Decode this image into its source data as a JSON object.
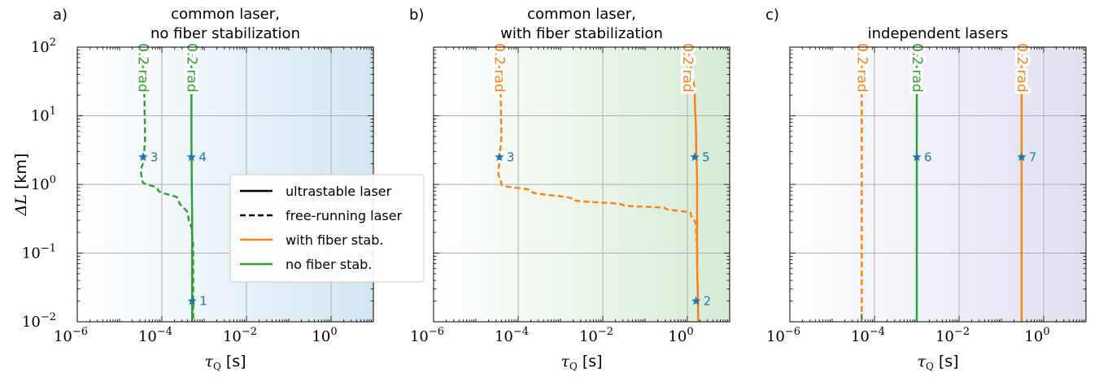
{
  "colors": {
    "orange": "#ff7f0e",
    "green": "#2ca02c",
    "star": "#1f77b4",
    "grid": "#b0b0b0",
    "shade_a": "#d2e6f1",
    "shade_b": "#d6ebd6",
    "shade_c": "#e0dff0"
  },
  "shared_axes": {
    "x_scale": "log",
    "y_scale": "log",
    "xlim": [
      1e-06,
      10
    ],
    "ylim": [
      0.01,
      100
    ],
    "xticks": [
      {
        "value": 1e-06,
        "base": "10",
        "exp": "−6"
      },
      {
        "value": 0.0001,
        "base": "10",
        "exp": "−4"
      },
      {
        "value": 0.01,
        "base": "10",
        "exp": "−2"
      },
      {
        "value": 1,
        "base": "10",
        "exp": "0"
      }
    ],
    "yticks": [
      {
        "value": 0.01,
        "base": "10",
        "exp": "−2"
      },
      {
        "value": 0.1,
        "base": "10",
        "exp": "−1"
      },
      {
        "value": 1,
        "base": "10",
        "exp": "0"
      },
      {
        "value": 10,
        "base": "10",
        "exp": "1"
      },
      {
        "value": 100,
        "base": "10",
        "exp": "2"
      }
    ],
    "xlabel": {
      "symbol": "τ",
      "sub": "Q",
      "unit": " [s]"
    },
    "ylabel": {
      "symbol": "ΔL",
      "unit": " [km]"
    },
    "grid": true
  },
  "legend": {
    "placement": "panel-a-right-center",
    "entries": [
      {
        "label": "ultrastable laser",
        "style": "solid",
        "color": "#000000"
      },
      {
        "label": "free-running laser",
        "style": "dashed",
        "color": "#000000"
      },
      {
        "label": "with fiber stab.",
        "style": "solid",
        "color": "#ff7f0e"
      },
      {
        "label": "no fiber stab.",
        "style": "solid",
        "color": "#2ca02c"
      }
    ]
  },
  "chart_data": [
    {
      "type": "line",
      "panel_label": "a)",
      "title": [
        "common laser,",
        "no fiber stabilization"
      ],
      "shade": "shade_a",
      "series": [
        {
          "color": "green",
          "style": "dashed",
          "label": "0.2 rad",
          "points": [
            [
              3.5e-05,
              100
            ],
            [
              3.6e-05,
              40
            ],
            [
              3.9e-05,
              15
            ],
            [
              4e-05,
              5
            ],
            [
              3.8e-05,
              2.5
            ],
            [
              3.2e-05,
              1.5
            ],
            [
              3.5e-05,
              1.1
            ],
            [
              8e-05,
              0.85
            ],
            [
              0.00025,
              0.6
            ],
            [
              0.00042,
              0.35
            ],
            [
              0.00052,
              0.2
            ],
            [
              0.00055,
              0.12
            ],
            [
              0.00055,
              0.01
            ]
          ]
        },
        {
          "color": "green",
          "style": "solid",
          "label": "0.2 rad",
          "points": [
            [
              0.0005,
              100
            ],
            [
              0.0005,
              20
            ],
            [
              0.0005,
              5
            ],
            [
              0.00051,
              1
            ],
            [
              0.00052,
              0.3
            ],
            [
              0.00052,
              0.01
            ]
          ]
        }
      ],
      "markers": [
        {
          "x": 3.6e-05,
          "y": 2.5,
          "label": "3"
        },
        {
          "x": 0.0005,
          "y": 2.5,
          "label": "4"
        },
        {
          "x": 0.00052,
          "y": 0.02,
          "label": "1"
        }
      ]
    },
    {
      "type": "line",
      "panel_label": "b)",
      "title": [
        "common laser,",
        "with fiber stabilization"
      ],
      "shade": "shade_b",
      "series": [
        {
          "color": "orange",
          "style": "dashed",
          "label": "0.2 rad",
          "points": [
            [
              3.5e-05,
              100
            ],
            [
              3.6e-05,
              40
            ],
            [
              3.9e-05,
              15
            ],
            [
              4e-05,
              5
            ],
            [
              3.7e-05,
              2.5
            ],
            [
              3.4e-05,
              1.5
            ],
            [
              4e-05,
              1.0
            ],
            [
              0.0002,
              0.8
            ],
            [
              0.002,
              0.6
            ],
            [
              0.03,
              0.5
            ],
            [
              0.3,
              0.45
            ],
            [
              1.2,
              0.38
            ],
            [
              1.6,
              0.25
            ],
            [
              1.7,
              0.1
            ],
            [
              1.8,
              0.01
            ]
          ]
        },
        {
          "color": "orange",
          "style": "solid",
          "label": "0.2 rad",
          "points": [
            [
              1.0,
              100
            ],
            [
              1.2,
              60
            ],
            [
              1.5,
              20
            ],
            [
              1.6,
              5
            ],
            [
              1.7,
              1
            ],
            [
              1.7,
              0.1
            ],
            [
              1.8,
              0.01
            ]
          ]
        }
      ],
      "markers": [
        {
          "x": 3.6e-05,
          "y": 2.5,
          "label": "3"
        },
        {
          "x": 1.5,
          "y": 2.5,
          "label": "5"
        },
        {
          "x": 1.6,
          "y": 0.02,
          "label": "2"
        }
      ]
    },
    {
      "type": "line",
      "panel_label": "c)",
      "title": [
        "",
        "independent lasers"
      ],
      "shade": "shade_c",
      "series": [
        {
          "color": "orange",
          "style": "dashed",
          "label": "0.2 rad",
          "points": [
            [
              5e-05,
              100
            ],
            [
              5e-05,
              0.01
            ]
          ]
        },
        {
          "color": "green",
          "style": "dashed",
          "label": "",
          "points": [
            [
              5e-05,
              0.013
            ],
            [
              5e-05,
              0.01
            ]
          ]
        },
        {
          "color": "green",
          "style": "solid",
          "label": "0.2 rad",
          "points": [
            [
              0.001,
              100
            ],
            [
              0.001,
              0.01
            ]
          ]
        },
        {
          "color": "orange",
          "style": "solid",
          "label": "0.2 rad",
          "points": [
            [
              0.3,
              100
            ],
            [
              0.3,
              0.01
            ]
          ]
        }
      ],
      "markers": [
        {
          "x": 0.001,
          "y": 2.5,
          "label": "6"
        },
        {
          "x": 0.3,
          "y": 2.5,
          "label": "7"
        }
      ]
    }
  ]
}
